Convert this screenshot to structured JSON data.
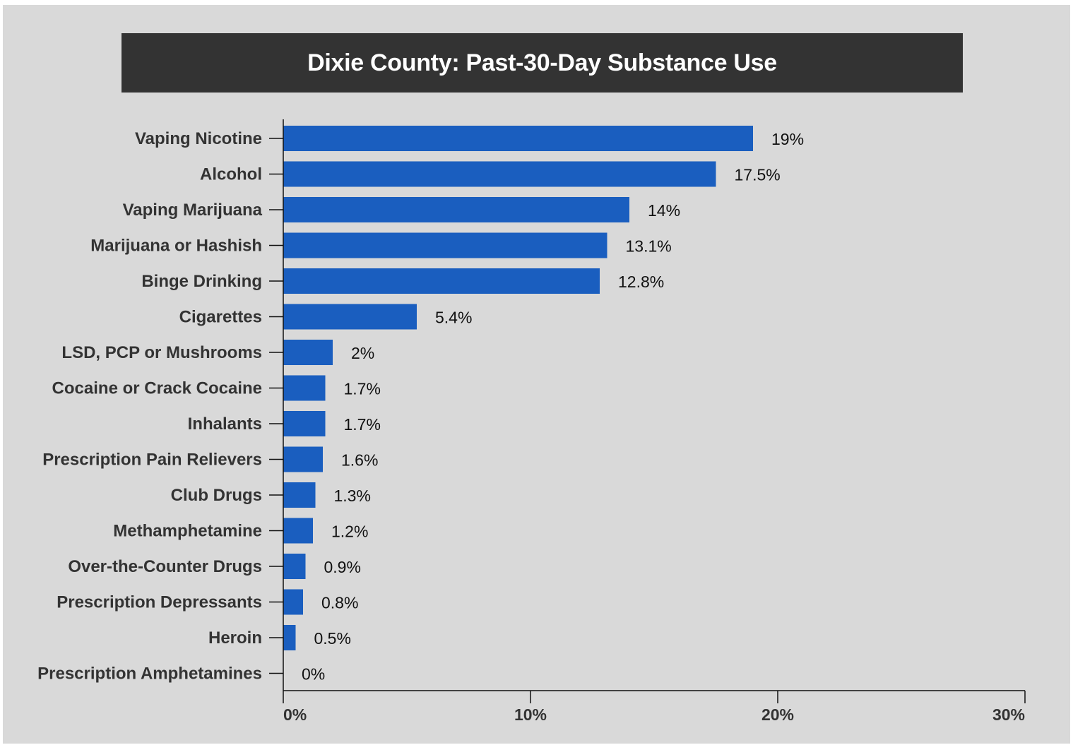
{
  "chart_data": {
    "type": "bar",
    "orientation": "horizontal",
    "title": "Dixie County: Past-30-Day Substance Use",
    "categories": [
      "Vaping Nicotine",
      "Alcohol",
      "Vaping Marijuana",
      "Marijuana or Hashish",
      "Binge Drinking",
      "Cigarettes",
      "LSD, PCP or Mushrooms",
      "Cocaine or Crack Cocaine",
      "Inhalants",
      "Prescription Pain Relievers",
      "Club Drugs",
      "Methamphetamine",
      "Over-the-Counter Drugs",
      "Prescription Depressants",
      "Heroin",
      "Prescription Amphetamines"
    ],
    "values": [
      19,
      17.5,
      14,
      13.1,
      12.8,
      5.4,
      2,
      1.7,
      1.7,
      1.6,
      1.3,
      1.2,
      0.9,
      0.8,
      0.5,
      0
    ],
    "value_labels": [
      "19%",
      "17.5%",
      "14%",
      "13.1%",
      "12.8%",
      "5.4%",
      "2%",
      "1.7%",
      "1.7%",
      "1.6%",
      "1.3%",
      "1.2%",
      "0.9%",
      "0.8%",
      "0.5%",
      "0%"
    ],
    "xlim": [
      0,
      30
    ],
    "x_ticks": [
      0,
      10,
      20,
      30
    ],
    "x_tick_labels": [
      "0%",
      "10%",
      "20%",
      "30%"
    ],
    "xlabel": "",
    "ylabel": "",
    "grid": false,
    "legend": "none"
  },
  "colors": {
    "background": "#d9d9d9",
    "title_bar": "#333333",
    "title_text": "#ffffff",
    "bar": "#1a5ebf",
    "axis": "#111111",
    "label_text": "#333333"
  }
}
